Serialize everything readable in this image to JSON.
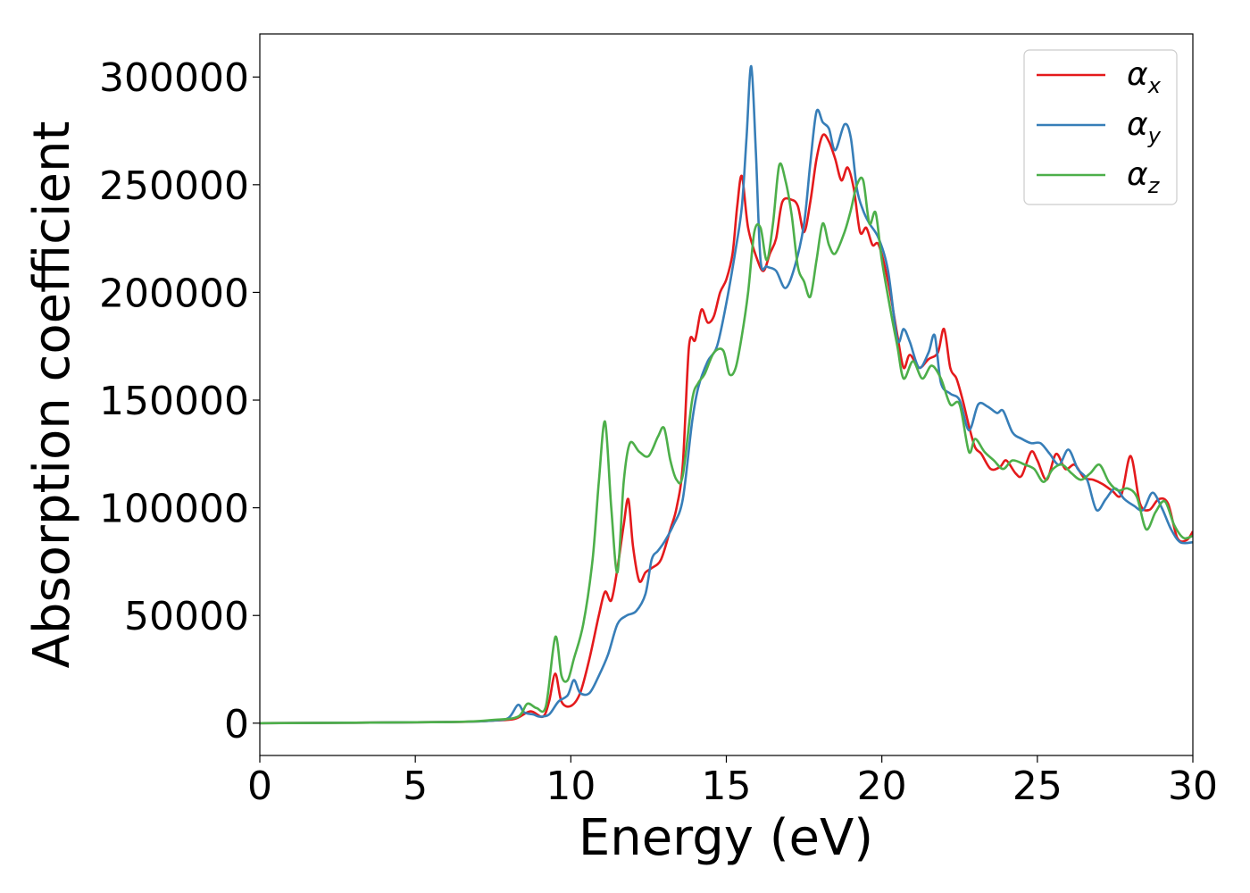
{
  "chart_data": {
    "type": "line",
    "title": "",
    "xlabel": "Energy (eV)",
    "ylabel": "Absorption coefficient",
    "xlim": [
      0,
      30
    ],
    "ylim": [
      -15000,
      320000
    ],
    "xticks": [
      0,
      5,
      10,
      15,
      20,
      25,
      30
    ],
    "yticks": [
      0,
      50000,
      100000,
      150000,
      200000,
      250000,
      300000
    ],
    "grid": false,
    "legend_position": "top-right",
    "series": [
      {
        "name": "α_x",
        "name_base": "α",
        "name_sub": "x",
        "color": "#e41a1c",
        "points": [
          [
            0,
            0
          ],
          [
            6,
            500
          ],
          [
            7.5,
            1200
          ],
          [
            8.2,
            2000
          ],
          [
            8.7,
            5500
          ],
          [
            9.1,
            3000
          ],
          [
            9.3,
            10000
          ],
          [
            9.5,
            23000
          ],
          [
            9.7,
            10000
          ],
          [
            10,
            8000
          ],
          [
            10.3,
            14000
          ],
          [
            10.6,
            30000
          ],
          [
            10.9,
            50000
          ],
          [
            11.1,
            61000
          ],
          [
            11.3,
            57000
          ],
          [
            11.5,
            72000
          ],
          [
            11.7,
            92000
          ],
          [
            11.85,
            104000
          ],
          [
            12,
            82000
          ],
          [
            12.2,
            66000
          ],
          [
            12.4,
            70000
          ],
          [
            12.6,
            72000
          ],
          [
            12.9,
            76000
          ],
          [
            13.2,
            90000
          ],
          [
            13.4,
            100000
          ],
          [
            13.6,
            120000
          ],
          [
            13.8,
            175000
          ],
          [
            14,
            178000
          ],
          [
            14.2,
            192000
          ],
          [
            14.4,
            186000
          ],
          [
            14.6,
            189000
          ],
          [
            14.8,
            200000
          ],
          [
            15,
            206000
          ],
          [
            15.2,
            218000
          ],
          [
            15.35,
            240000
          ],
          [
            15.5,
            254000
          ],
          [
            15.7,
            230000
          ],
          [
            16,
            215000
          ],
          [
            16.2,
            210000
          ],
          [
            16.4,
            218000
          ],
          [
            16.6,
            225000
          ],
          [
            16.8,
            242000
          ],
          [
            17.1,
            243000
          ],
          [
            17.3,
            240000
          ],
          [
            17.5,
            228000
          ],
          [
            17.7,
            242000
          ],
          [
            17.9,
            262000
          ],
          [
            18.1,
            273000
          ],
          [
            18.3,
            270000
          ],
          [
            18.5,
            262000
          ],
          [
            18.7,
            252000
          ],
          [
            18.9,
            258000
          ],
          [
            19.1,
            248000
          ],
          [
            19.3,
            228000
          ],
          [
            19.5,
            230000
          ],
          [
            19.7,
            222000
          ],
          [
            19.9,
            222000
          ],
          [
            20.2,
            205000
          ],
          [
            20.5,
            180000
          ],
          [
            20.7,
            165000
          ],
          [
            20.9,
            171000
          ],
          [
            21.2,
            165000
          ],
          [
            21.5,
            169000
          ],
          [
            21.8,
            172000
          ],
          [
            22,
            183000
          ],
          [
            22.2,
            165000
          ],
          [
            22.4,
            160000
          ],
          [
            22.6,
            150000
          ],
          [
            22.8,
            138000
          ],
          [
            23,
            128000
          ],
          [
            23.2,
            125000
          ],
          [
            23.5,
            118000
          ],
          [
            23.8,
            119000
          ],
          [
            24,
            122000
          ],
          [
            24.3,
            116000
          ],
          [
            24.5,
            115000
          ],
          [
            24.8,
            126000
          ],
          [
            25,
            122000
          ],
          [
            25.3,
            113000
          ],
          [
            25.6,
            125000
          ],
          [
            25.9,
            118000
          ],
          [
            26.2,
            120000
          ],
          [
            26.5,
            114000
          ],
          [
            26.8,
            113000
          ],
          [
            27.1,
            111000
          ],
          [
            27.4,
            108000
          ],
          [
            27.7,
            106000
          ],
          [
            28,
            124000
          ],
          [
            28.3,
            102000
          ],
          [
            28.6,
            99000
          ],
          [
            28.9,
            104000
          ],
          [
            29.2,
            102000
          ],
          [
            29.5,
            86000
          ],
          [
            29.8,
            85000
          ],
          [
            30,
            89000
          ]
        ]
      },
      {
        "name": "α_y",
        "name_base": "α",
        "name_sub": "y",
        "color": "#377eb8",
        "points": [
          [
            0,
            0
          ],
          [
            6,
            500
          ],
          [
            7.5,
            1200
          ],
          [
            8,
            2500
          ],
          [
            8.3,
            8500
          ],
          [
            8.5,
            5000
          ],
          [
            8.8,
            4000
          ],
          [
            9,
            3000
          ],
          [
            9.3,
            4000
          ],
          [
            9.6,
            10000
          ],
          [
            9.9,
            13000
          ],
          [
            10.1,
            20000
          ],
          [
            10.3,
            14000
          ],
          [
            10.6,
            14000
          ],
          [
            10.9,
            22000
          ],
          [
            11.2,
            32000
          ],
          [
            11.5,
            46000
          ],
          [
            11.8,
            50000
          ],
          [
            12.1,
            52000
          ],
          [
            12.4,
            60000
          ],
          [
            12.6,
            76000
          ],
          [
            12.8,
            80000
          ],
          [
            13,
            84000
          ],
          [
            13.3,
            92000
          ],
          [
            13.6,
            104000
          ],
          [
            13.9,
            140000
          ],
          [
            14.1,
            156000
          ],
          [
            14.4,
            168000
          ],
          [
            14.7,
            175000
          ],
          [
            15,
            195000
          ],
          [
            15.3,
            220000
          ],
          [
            15.5,
            240000
          ],
          [
            15.65,
            272000
          ],
          [
            15.8,
            305000
          ],
          [
            15.95,
            265000
          ],
          [
            16.1,
            215000
          ],
          [
            16.3,
            212000
          ],
          [
            16.6,
            210000
          ],
          [
            16.9,
            202000
          ],
          [
            17.2,
            212000
          ],
          [
            17.5,
            232000
          ],
          [
            17.7,
            260000
          ],
          [
            17.9,
            284000
          ],
          [
            18.1,
            279000
          ],
          [
            18.3,
            276000
          ],
          [
            18.5,
            266000
          ],
          [
            18.8,
            278000
          ],
          [
            19,
            272000
          ],
          [
            19.2,
            248000
          ],
          [
            19.4,
            238000
          ],
          [
            19.6,
            232000
          ],
          [
            19.9,
            225000
          ],
          [
            20.2,
            210000
          ],
          [
            20.5,
            178000
          ],
          [
            20.7,
            183000
          ],
          [
            20.9,
            177000
          ],
          [
            21.2,
            165000
          ],
          [
            21.5,
            172000
          ],
          [
            21.7,
            180000
          ],
          [
            21.9,
            158000
          ],
          [
            22.2,
            153000
          ],
          [
            22.5,
            150000
          ],
          [
            22.8,
            136000
          ],
          [
            23.1,
            148000
          ],
          [
            23.4,
            147000
          ],
          [
            23.7,
            144000
          ],
          [
            23.9,
            145000
          ],
          [
            24.2,
            135000
          ],
          [
            24.5,
            132000
          ],
          [
            24.8,
            130000
          ],
          [
            25.1,
            130000
          ],
          [
            25.4,
            125000
          ],
          [
            25.7,
            120000
          ],
          [
            26,
            127000
          ],
          [
            26.3,
            118000
          ],
          [
            26.6,
            113000
          ],
          [
            26.9,
            99000
          ],
          [
            27.2,
            104000
          ],
          [
            27.5,
            109000
          ],
          [
            27.8,
            104000
          ],
          [
            28.1,
            101000
          ],
          [
            28.4,
            99000
          ],
          [
            28.7,
            107000
          ],
          [
            29,
            100000
          ],
          [
            29.3,
            90000
          ],
          [
            29.6,
            84000
          ],
          [
            30,
            84000
          ]
        ]
      },
      {
        "name": "α_z",
        "name_base": "α",
        "name_sub": "z",
        "color": "#4daf4a",
        "points": [
          [
            0,
            0
          ],
          [
            6,
            500
          ],
          [
            7.5,
            1500
          ],
          [
            8.3,
            3000
          ],
          [
            8.6,
            9000
          ],
          [
            8.9,
            7000
          ],
          [
            9.2,
            8000
          ],
          [
            9.5,
            40000
          ],
          [
            9.7,
            22000
          ],
          [
            9.9,
            20000
          ],
          [
            10.1,
            30000
          ],
          [
            10.4,
            46000
          ],
          [
            10.7,
            76000
          ],
          [
            10.9,
            112000
          ],
          [
            11.1,
            140000
          ],
          [
            11.3,
            100000
          ],
          [
            11.5,
            70000
          ],
          [
            11.7,
            112000
          ],
          [
            11.9,
            130000
          ],
          [
            12.2,
            126000
          ],
          [
            12.5,
            124000
          ],
          [
            12.8,
            133000
          ],
          [
            13,
            137000
          ],
          [
            13.2,
            122000
          ],
          [
            13.4,
            113000
          ],
          [
            13.6,
            115000
          ],
          [
            13.9,
            150000
          ],
          [
            14.1,
            158000
          ],
          [
            14.3,
            162000
          ],
          [
            14.6,
            172000
          ],
          [
            14.9,
            173000
          ],
          [
            15.1,
            162000
          ],
          [
            15.3,
            165000
          ],
          [
            15.5,
            180000
          ],
          [
            15.7,
            200000
          ],
          [
            15.9,
            228000
          ],
          [
            16.1,
            230000
          ],
          [
            16.3,
            215000
          ],
          [
            16.5,
            232000
          ],
          [
            16.7,
            259000
          ],
          [
            16.9,
            252000
          ],
          [
            17.1,
            236000
          ],
          [
            17.3,
            212000
          ],
          [
            17.5,
            205000
          ],
          [
            17.7,
            198000
          ],
          [
            17.9,
            215000
          ],
          [
            18.1,
            232000
          ],
          [
            18.3,
            222000
          ],
          [
            18.5,
            218000
          ],
          [
            18.8,
            228000
          ],
          [
            19,
            238000
          ],
          [
            19.2,
            250000
          ],
          [
            19.4,
            252000
          ],
          [
            19.6,
            232000
          ],
          [
            19.8,
            237000
          ],
          [
            20,
            215000
          ],
          [
            20.3,
            190000
          ],
          [
            20.5,
            175000
          ],
          [
            20.7,
            160000
          ],
          [
            21,
            168000
          ],
          [
            21.3,
            160000
          ],
          [
            21.6,
            166000
          ],
          [
            21.9,
            160000
          ],
          [
            22.2,
            148000
          ],
          [
            22.5,
            148000
          ],
          [
            22.8,
            126000
          ],
          [
            23,
            132000
          ],
          [
            23.3,
            126000
          ],
          [
            23.6,
            122000
          ],
          [
            23.9,
            118000
          ],
          [
            24.2,
            122000
          ],
          [
            24.6,
            120000
          ],
          [
            24.9,
            118000
          ],
          [
            25.2,
            112000
          ],
          [
            25.5,
            118000
          ],
          [
            25.8,
            120000
          ],
          [
            26.1,
            116000
          ],
          [
            26.4,
            113000
          ],
          [
            26.7,
            116000
          ],
          [
            27,
            120000
          ],
          [
            27.3,
            112000
          ],
          [
            27.6,
            108000
          ],
          [
            27.9,
            109000
          ],
          [
            28.2,
            105000
          ],
          [
            28.5,
            90000
          ],
          [
            28.8,
            98000
          ],
          [
            29.1,
            103000
          ],
          [
            29.4,
            92000
          ],
          [
            29.7,
            86000
          ],
          [
            30,
            87000
          ]
        ]
      }
    ]
  }
}
